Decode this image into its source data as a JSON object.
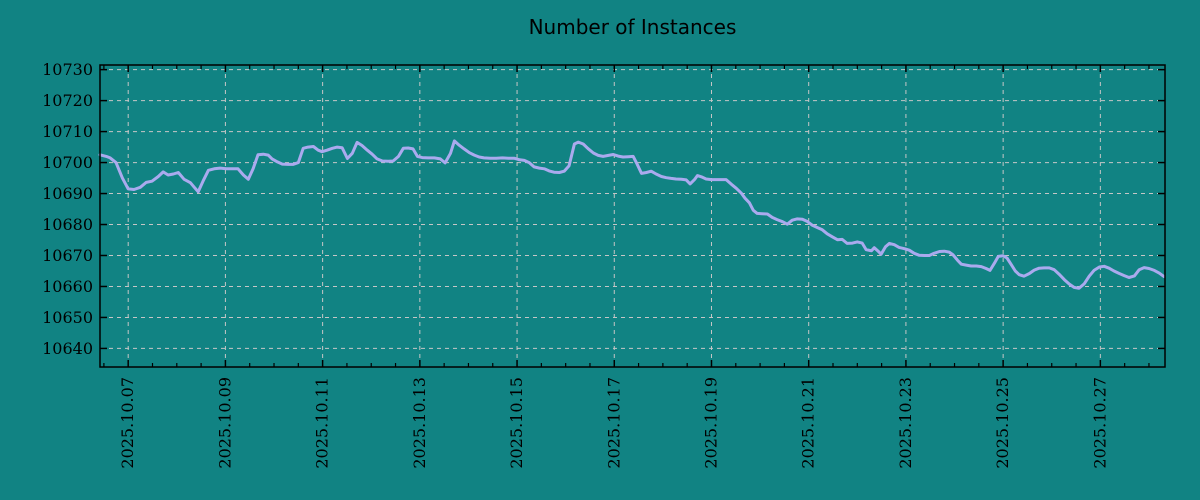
{
  "page": {
    "background_color": "#118383"
  },
  "chart_data": {
    "type": "line",
    "title": "Number of Instances",
    "legend_position": "none",
    "grid": true,
    "colors": {
      "background": "#118383",
      "series_line": "#aaaaee",
      "gridline": "#c6c6c6",
      "frame": "#000000",
      "text": "#000000"
    },
    "xlabel": "",
    "ylabel": "",
    "xlim_days_october_2025": [
      6.42,
      28.33
    ],
    "ylim": [
      10634,
      10731.5
    ],
    "y_ticks": [
      10640,
      10650,
      10660,
      10670,
      10680,
      10690,
      10700,
      10710,
      10720,
      10730
    ],
    "y_tick_labels": [
      "10640",
      "10650",
      "10660",
      "10670",
      "10680",
      "10690",
      "10700",
      "10710",
      "10720",
      "10730"
    ],
    "x_tick_days": [
      7,
      9,
      11,
      13,
      15,
      17,
      19,
      21,
      23,
      25,
      27
    ],
    "x_tick_labels": [
      "2025.10.07",
      "2025.10.09",
      "2025.10.11",
      "2025.10.13",
      "2025.10.15",
      "2025.10.17",
      "2025.10.19",
      "2025.10.21",
      "2025.10.23",
      "2025.10.25",
      "2025.10.27"
    ],
    "x_minor_tick_interval_days": 0.5,
    "points": [
      [
        6.42,
        10702.5
      ],
      [
        6.55,
        10702.0
      ],
      [
        6.63,
        10701.5
      ],
      [
        6.75,
        10700.0
      ],
      [
        6.88,
        10695.0
      ],
      [
        7.0,
        10691.5
      ],
      [
        7.12,
        10691.3
      ],
      [
        7.25,
        10692.0
      ],
      [
        7.37,
        10693.6
      ],
      [
        7.49,
        10694.0
      ],
      [
        7.62,
        10695.5
      ],
      [
        7.72,
        10697.0
      ],
      [
        7.82,
        10696.0
      ],
      [
        7.93,
        10696.3
      ],
      [
        8.03,
        10696.8
      ],
      [
        8.15,
        10694.6
      ],
      [
        8.28,
        10693.5
      ],
      [
        8.36,
        10692.0
      ],
      [
        8.44,
        10690.6
      ],
      [
        8.54,
        10694.0
      ],
      [
        8.65,
        10697.5
      ],
      [
        8.77,
        10698.0
      ],
      [
        8.89,
        10698.2
      ],
      [
        9.02,
        10698.0
      ],
      [
        9.14,
        10698.0
      ],
      [
        9.26,
        10698.0
      ],
      [
        9.37,
        10696.0
      ],
      [
        9.47,
        10694.6
      ],
      [
        9.57,
        10698.0
      ],
      [
        9.67,
        10702.5
      ],
      [
        9.78,
        10702.7
      ],
      [
        9.88,
        10702.4
      ],
      [
        9.96,
        10701.2
      ],
      [
        10.07,
        10700.2
      ],
      [
        10.17,
        10699.5
      ],
      [
        10.29,
        10699.4
      ],
      [
        10.39,
        10699.4
      ],
      [
        10.5,
        10700.0
      ],
      [
        10.6,
        10704.6
      ],
      [
        10.7,
        10705.0
      ],
      [
        10.81,
        10705.2
      ],
      [
        10.91,
        10704.0
      ],
      [
        10.99,
        10703.5
      ],
      [
        11.09,
        10704.0
      ],
      [
        11.2,
        10704.6
      ],
      [
        11.3,
        10705.0
      ],
      [
        11.4,
        10704.8
      ],
      [
        11.51,
        10701.3
      ],
      [
        11.61,
        10703.0
      ],
      [
        11.71,
        10706.5
      ],
      [
        11.81,
        10705.5
      ],
      [
        11.92,
        10704.0
      ],
      [
        12.02,
        10702.7
      ],
      [
        12.12,
        10701.2
      ],
      [
        12.23,
        10700.5
      ],
      [
        12.35,
        10700.4
      ],
      [
        12.45,
        10700.5
      ],
      [
        12.56,
        10702.0
      ],
      [
        12.66,
        10704.6
      ],
      [
        12.76,
        10704.7
      ],
      [
        12.86,
        10704.4
      ],
      [
        12.95,
        10702.0
      ],
      [
        13.05,
        10701.6
      ],
      [
        13.17,
        10701.5
      ],
      [
        13.3,
        10701.5
      ],
      [
        13.42,
        10701.2
      ],
      [
        13.52,
        10699.9
      ],
      [
        13.63,
        10703.0
      ],
      [
        13.71,
        10707.0
      ],
      [
        13.81,
        10705.6
      ],
      [
        13.91,
        10704.4
      ],
      [
        14.02,
        10703.2
      ],
      [
        14.12,
        10702.4
      ],
      [
        14.22,
        10701.8
      ],
      [
        14.32,
        10701.5
      ],
      [
        14.45,
        10701.4
      ],
      [
        14.57,
        10701.4
      ],
      [
        14.7,
        10701.5
      ],
      [
        14.82,
        10701.4
      ],
      [
        14.94,
        10701.4
      ],
      [
        15.05,
        10700.9
      ],
      [
        15.15,
        10700.7
      ],
      [
        15.25,
        10700.0
      ],
      [
        15.35,
        10698.6
      ],
      [
        15.46,
        10698.2
      ],
      [
        15.56,
        10698.0
      ],
      [
        15.66,
        10697.3
      ],
      [
        15.76,
        10696.9
      ],
      [
        15.87,
        10696.8
      ],
      [
        15.97,
        10697.2
      ],
      [
        16.07,
        10699.0
      ],
      [
        16.18,
        10706.0
      ],
      [
        16.26,
        10706.6
      ],
      [
        16.36,
        10706.0
      ],
      [
        16.46,
        10704.5
      ],
      [
        16.57,
        10703.1
      ],
      [
        16.67,
        10702.3
      ],
      [
        16.77,
        10702.0
      ],
      [
        16.88,
        10702.3
      ],
      [
        16.98,
        10702.6
      ],
      [
        17.08,
        10702.1
      ],
      [
        17.18,
        10701.8
      ],
      [
        17.29,
        10701.9
      ],
      [
        17.39,
        10702.0
      ],
      [
        17.47,
        10699.5
      ],
      [
        17.56,
        10696.5
      ],
      [
        17.66,
        10696.8
      ],
      [
        17.76,
        10697.2
      ],
      [
        17.86,
        10696.3
      ],
      [
        17.97,
        10695.5
      ],
      [
        18.07,
        10695.1
      ],
      [
        18.17,
        10694.9
      ],
      [
        18.27,
        10694.7
      ],
      [
        18.38,
        10694.6
      ],
      [
        18.48,
        10694.4
      ],
      [
        18.56,
        10693.1
      ],
      [
        18.65,
        10694.5
      ],
      [
        18.71,
        10695.8
      ],
      [
        18.79,
        10695.4
      ],
      [
        18.89,
        10694.7
      ],
      [
        19.0,
        10694.5
      ],
      [
        19.1,
        10694.5
      ],
      [
        19.2,
        10694.5
      ],
      [
        19.3,
        10694.5
      ],
      [
        19.41,
        10693.0
      ],
      [
        19.51,
        10691.7
      ],
      [
        19.61,
        10690.2
      ],
      [
        19.69,
        10688.5
      ],
      [
        19.78,
        10687.0
      ],
      [
        19.86,
        10684.6
      ],
      [
        19.94,
        10683.6
      ],
      [
        20.04,
        10683.5
      ],
      [
        20.15,
        10683.4
      ],
      [
        20.25,
        10682.3
      ],
      [
        20.35,
        10681.6
      ],
      [
        20.46,
        10680.9
      ],
      [
        20.56,
        10680.1
      ],
      [
        20.66,
        10681.4
      ],
      [
        20.76,
        10681.8
      ],
      [
        20.87,
        10681.7
      ],
      [
        20.97,
        10681.0
      ],
      [
        21.07,
        10679.8
      ],
      [
        21.18,
        10679.0
      ],
      [
        21.28,
        10678.3
      ],
      [
        21.38,
        10677.0
      ],
      [
        21.49,
        10676.0
      ],
      [
        21.59,
        10675.1
      ],
      [
        21.69,
        10675.2
      ],
      [
        21.79,
        10673.9
      ],
      [
        21.9,
        10674.0
      ],
      [
        22.0,
        10674.4
      ],
      [
        22.1,
        10674.0
      ],
      [
        22.18,
        10671.9
      ],
      [
        22.29,
        10671.5
      ],
      [
        22.35,
        10672.5
      ],
      [
        22.43,
        10671.4
      ],
      [
        22.49,
        10670.4
      ],
      [
        22.58,
        10672.8
      ],
      [
        22.66,
        10673.9
      ],
      [
        22.76,
        10673.5
      ],
      [
        22.86,
        10672.6
      ],
      [
        22.97,
        10672.2
      ],
      [
        23.07,
        10671.7
      ],
      [
        23.17,
        10670.7
      ],
      [
        23.27,
        10670.1
      ],
      [
        23.38,
        10670.0
      ],
      [
        23.48,
        10670.0
      ],
      [
        23.58,
        10670.7
      ],
      [
        23.69,
        10671.3
      ],
      [
        23.79,
        10671.4
      ],
      [
        23.89,
        10671.1
      ],
      [
        23.97,
        10670.2
      ],
      [
        24.06,
        10668.5
      ],
      [
        24.14,
        10667.2
      ],
      [
        24.24,
        10666.9
      ],
      [
        24.34,
        10666.6
      ],
      [
        24.45,
        10666.6
      ],
      [
        24.55,
        10666.4
      ],
      [
        24.65,
        10665.8
      ],
      [
        24.73,
        10665.2
      ],
      [
        24.82,
        10667.5
      ],
      [
        24.9,
        10669.7
      ],
      [
        25.0,
        10669.9
      ],
      [
        25.08,
        10669.2
      ],
      [
        25.17,
        10667.0
      ],
      [
        25.25,
        10665.0
      ],
      [
        25.33,
        10663.8
      ],
      [
        25.43,
        10663.3
      ],
      [
        25.54,
        10664.2
      ],
      [
        25.64,
        10665.3
      ],
      [
        25.74,
        10665.9
      ],
      [
        25.84,
        10666.0
      ],
      [
        25.95,
        10666.0
      ],
      [
        26.05,
        10665.4
      ],
      [
        26.15,
        10664.0
      ],
      [
        26.26,
        10662.2
      ],
      [
        26.36,
        10660.8
      ],
      [
        26.46,
        10659.7
      ],
      [
        26.56,
        10659.4
      ],
      [
        26.67,
        10660.9
      ],
      [
        26.77,
        10663.3
      ],
      [
        26.87,
        10665.2
      ],
      [
        26.98,
        10666.3
      ],
      [
        27.08,
        10666.5
      ],
      [
        27.18,
        10665.9
      ],
      [
        27.28,
        10665.0
      ],
      [
        27.39,
        10664.2
      ],
      [
        27.49,
        10663.5
      ],
      [
        27.59,
        10662.9
      ],
      [
        27.7,
        10663.4
      ],
      [
        27.8,
        10665.4
      ],
      [
        27.9,
        10666.1
      ],
      [
        28.0,
        10665.8
      ],
      [
        28.11,
        10665.2
      ],
      [
        28.21,
        10664.3
      ],
      [
        28.31,
        10663.2
      ]
    ]
  }
}
